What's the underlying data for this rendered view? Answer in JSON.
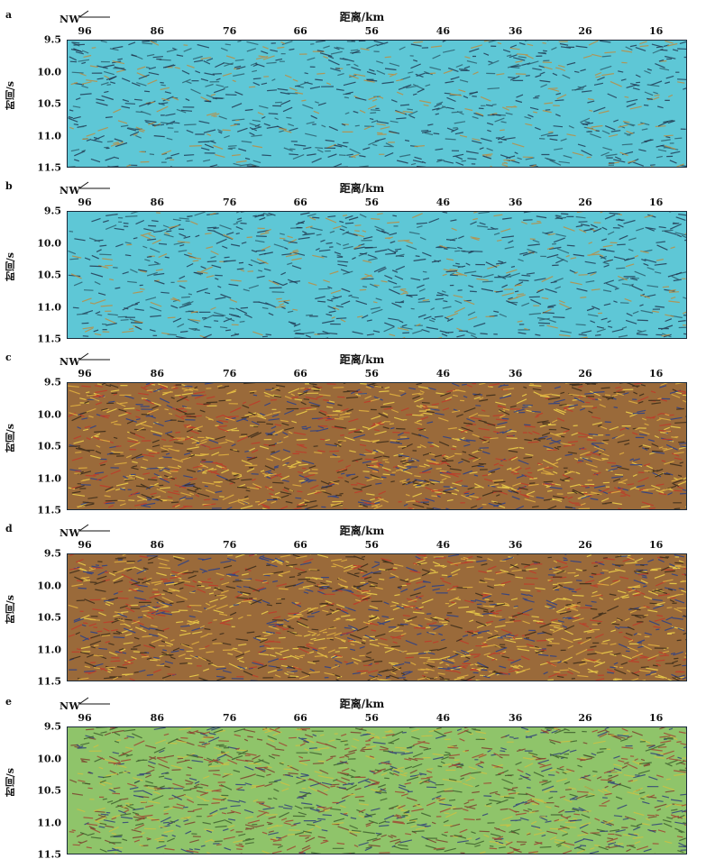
{
  "panels": [
    {
      "letter": "a",
      "style": "cyan"
    },
    {
      "letter": "b",
      "style": "cyan"
    },
    {
      "letter": "c",
      "style": "brown"
    },
    {
      "letter": "d",
      "style": "brown"
    },
    {
      "letter": "e",
      "style": "green"
    }
  ],
  "direction_label": "NW",
  "xlabel": "距离/km",
  "ylabel": "时间/s",
  "x_ticks": [
    "96",
    "86",
    "76",
    "66",
    "56",
    "46",
    "36",
    "26",
    "16"
  ],
  "y_ticks": [
    "9.5",
    "10.0",
    "10.5",
    "11.0",
    "11.5"
  ],
  "colors": {
    "cyan_bg": "#5ec7d6",
    "brown_bg": "#9a6a3a",
    "green_bg": "#8fc46a",
    "frame": "#1a2a3a"
  },
  "chart_data": [
    {
      "type": "heatmap",
      "panel": "a",
      "xlabel": "距离/km",
      "ylabel": "时间/s",
      "x_ticks": [
        96,
        86,
        76,
        66,
        56,
        46,
        36,
        26,
        16
      ],
      "ylim": [
        9.5,
        11.5
      ]
    },
    {
      "type": "heatmap",
      "panel": "b",
      "xlabel": "距离/km",
      "ylabel": "时间/s",
      "x_ticks": [
        96,
        86,
        76,
        66,
        56,
        46,
        36,
        26,
        16
      ],
      "ylim": [
        9.5,
        11.5
      ]
    },
    {
      "type": "heatmap",
      "panel": "c",
      "xlabel": "距离/km",
      "ylabel": "时间/s",
      "x_ticks": [
        96,
        86,
        76,
        66,
        56,
        46,
        36,
        26,
        16
      ],
      "ylim": [
        9.5,
        11.5
      ]
    },
    {
      "type": "heatmap",
      "panel": "d",
      "xlabel": "距离/km",
      "ylabel": "时间/s",
      "x_ticks": [
        96,
        86,
        76,
        66,
        56,
        46,
        36,
        26,
        16
      ],
      "ylim": [
        9.5,
        11.5
      ]
    },
    {
      "type": "heatmap",
      "panel": "e",
      "xlabel": "距离/km",
      "ylabel": "时间/s",
      "x_ticks": [
        96,
        86,
        76,
        66,
        56,
        46,
        36,
        26,
        16
      ],
      "ylim": [
        9.5,
        11.5
      ]
    }
  ]
}
